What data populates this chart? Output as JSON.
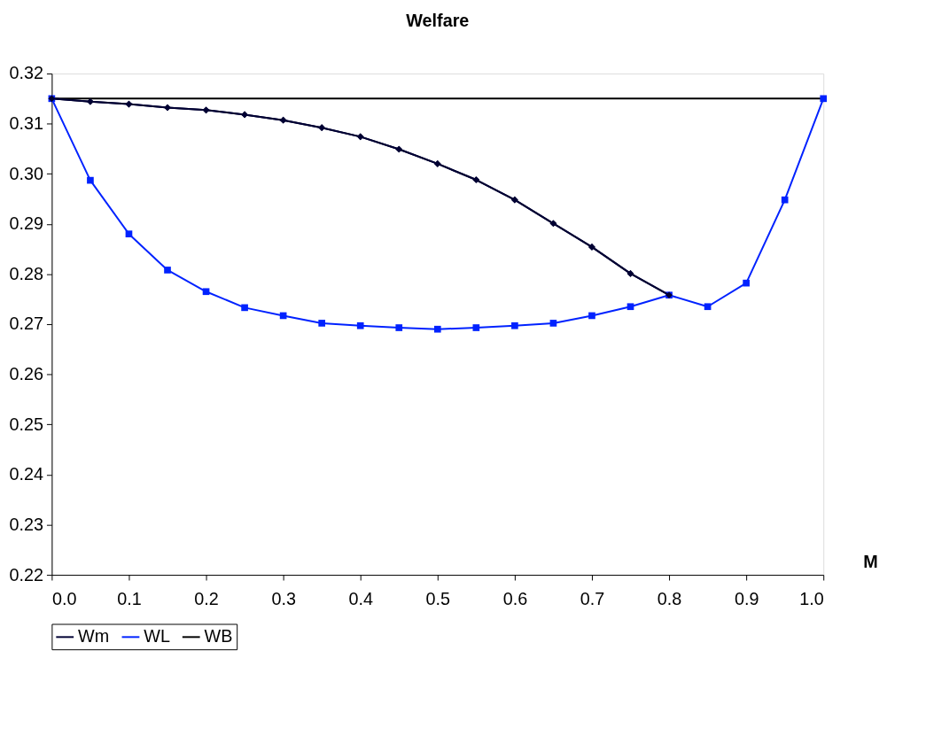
{
  "chart_data": {
    "type": "line",
    "title": "Welfare",
    "xlabel": "M",
    "x": [
      0,
      0.05,
      0.1,
      0.15,
      0.2,
      0.25,
      0.3,
      0.35,
      0.4,
      0.45,
      0.5,
      0.55,
      0.6,
      0.65,
      0.7,
      0.75,
      0.8,
      0.85,
      0.9,
      0.95,
      1.0
    ],
    "series": [
      {
        "name": "Wm",
        "color": "#000033",
        "marker": "diamond",
        "values": [
          0.315,
          0.3144,
          0.3139,
          0.3132,
          0.3127,
          0.3118,
          0.3107,
          0.3092,
          0.3074,
          0.3049,
          0.302,
          0.2988,
          0.2948,
          0.2901,
          0.2854,
          0.2801,
          0.2758,
          null,
          null,
          null,
          null
        ]
      },
      {
        "name": "WL",
        "color": "#0022ff",
        "marker": "square",
        "values": [
          0.315,
          0.2987,
          0.288,
          0.2808,
          0.2765,
          0.2733,
          0.2717,
          0.2702,
          0.2697,
          0.2693,
          0.269,
          0.2693,
          0.2697,
          0.2702,
          0.2717,
          0.2735,
          0.2758,
          0.2735,
          0.2782,
          0.2948,
          0.315
        ]
      },
      {
        "name": "WB",
        "color": "#000000",
        "marker": "none",
        "values": [
          0.315,
          0.315,
          0.315,
          0.315,
          0.315,
          0.315,
          0.315,
          0.315,
          0.315,
          0.315,
          0.315,
          0.315,
          0.315,
          0.315,
          0.315,
          0.315,
          0.315,
          0.315,
          0.315,
          0.315,
          0.315
        ]
      }
    ],
    "xlim": [
      0,
      1
    ],
    "ylim": [
      0.22,
      0.32
    ],
    "xticks": [
      {
        "value": 0,
        "label": "0.0"
      },
      0.1,
      0.2,
      0.3,
      0.4,
      0.5,
      0.6,
      0.7,
      0.8,
      0.9,
      {
        "value": 1,
        "label": "1.0"
      }
    ],
    "yticks": [
      0.22,
      0.23,
      0.24,
      0.25,
      0.26,
      0.27,
      0.28,
      0.29,
      {
        "value": 0.3,
        "label": "0.30"
      },
      0.31,
      0.32
    ],
    "grid": false,
    "legend": "bottom",
    "line_style": "solid"
  }
}
